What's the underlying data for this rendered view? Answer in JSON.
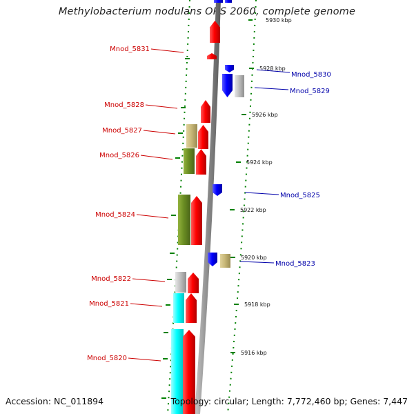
{
  "title": "Methylobacterium nodulans ORS 2060, complete genome",
  "footer": {
    "accession": "Accession: NC_011894",
    "summary": "Topology: circular; Length: 7,772,460 bp; Genes: 7,447"
  },
  "colors": {
    "forward": "#ff0000",
    "reverse": "#0000ff",
    "forward_label": "#cc0000",
    "reverse_label": "#0000aa",
    "grey": "#c0c0c0",
    "olive": "#6b8e23",
    "khaki": "#c8b878",
    "cyan": "#00ffff",
    "tick": "#008000",
    "backbone": "#8c8c8c"
  },
  "scale": {
    "partial_label": "5930 kbp",
    "ticks": [
      {
        "label": "5928 kbp"
      },
      {
        "label": "5926 kbp"
      },
      {
        "label": "5924 kbp"
      },
      {
        "label": "5922 kbp"
      },
      {
        "label": "5920 kbp"
      },
      {
        "label": "5918 kbp"
      },
      {
        "label": "5916 kbp"
      }
    ]
  },
  "genes": [
    {
      "name": "Mnod_5831",
      "strand": "forward"
    },
    {
      "name": "Mnod_5830",
      "strand": "reverse"
    },
    {
      "name": "Mnod_5829",
      "strand": "reverse"
    },
    {
      "name": "Mnod_5828",
      "strand": "forward"
    },
    {
      "name": "Mnod_5827",
      "strand": "forward"
    },
    {
      "name": "Mnod_5826",
      "strand": "forward"
    },
    {
      "name": "Mnod_5825",
      "strand": "reverse"
    },
    {
      "name": "Mnod_5824",
      "strand": "forward"
    },
    {
      "name": "Mnod_5823",
      "strand": "reverse"
    },
    {
      "name": "Mnod_5822",
      "strand": "forward"
    },
    {
      "name": "Mnod_5821",
      "strand": "forward"
    },
    {
      "name": "Mnod_5820",
      "strand": "forward"
    }
  ]
}
